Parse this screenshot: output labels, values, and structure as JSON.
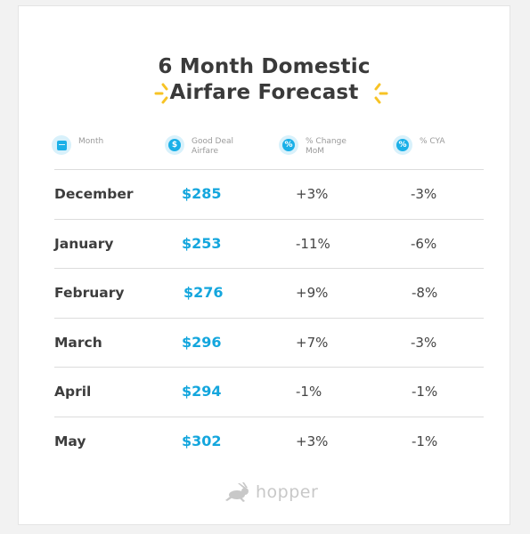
{
  "title": {
    "line1": "6 Month Domestic",
    "line2": "Airfare Forecast"
  },
  "columns": [
    {
      "label": "Month",
      "icon": "calendar-icon"
    },
    {
      "label": "Good Deal\nAirfare",
      "icon": "dollar-icon"
    },
    {
      "label": "% Change\nMoM",
      "icon": "percent-icon"
    },
    {
      "label": "% CYA",
      "icon": "percent-icon"
    }
  ],
  "rows": [
    {
      "month": "December",
      "airfare": "$285",
      "mom": "+3%",
      "cya": "-3%"
    },
    {
      "month": "January",
      "airfare": "$253",
      "mom": "-11%",
      "cya": "-6%"
    },
    {
      "month": "February",
      "airfare": "$276",
      "mom": "+9%",
      "cya": "-8%"
    },
    {
      "month": "March",
      "airfare": "$296",
      "mom": "+7%",
      "cya": "-3%"
    },
    {
      "month": "April",
      "airfare": "$294",
      "mom": "-1%",
      "cya": "-1%"
    },
    {
      "month": "May",
      "airfare": "$302",
      "mom": "+3%",
      "cya": "-1%"
    }
  ],
  "brand": {
    "name": "hopper",
    "accent_color": "#14a6dd",
    "spark_color": "#f7c325"
  }
}
